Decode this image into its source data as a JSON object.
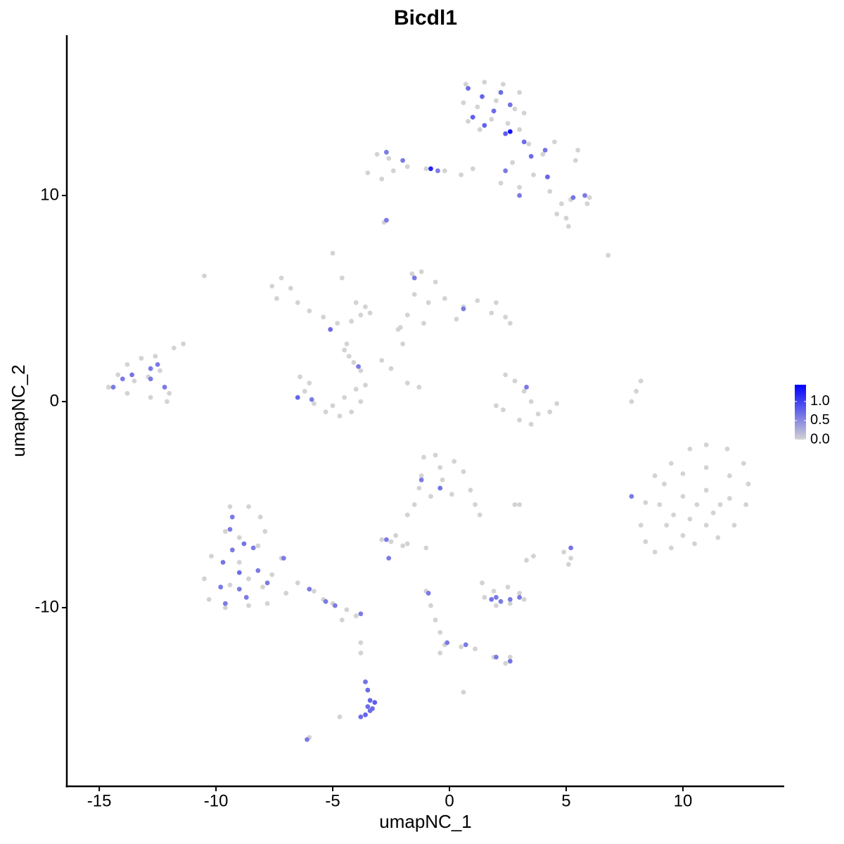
{
  "chart_data": {
    "type": "scatter",
    "title": "Bicdl1",
    "x_label": "umapNC_1",
    "y_label": "umapNC_2",
    "x": [
      0.7,
      1.5,
      2.3,
      3.0,
      0.6,
      1.2,
      2.0,
      2.8,
      3.2,
      0.8,
      1.8,
      2.5,
      3.0,
      1.3,
      0.8,
      1.4,
      2.2,
      1.0,
      1.9,
      2.6,
      1.5,
      2.4,
      2.6,
      3.4,
      4.0,
      4.5,
      5.4,
      5.5,
      3.6,
      4.3,
      4.8,
      5.2,
      5.9,
      6.0,
      4.6,
      5.0,
      5.1,
      3.0,
      2.2,
      2.7,
      3.2,
      4.1,
      3.5,
      4.2,
      5.3,
      5.8,
      3.0,
      2.4,
      -3.5,
      -3.1,
      -2.6,
      -2.4,
      -1.8,
      -1.0,
      -0.2,
      0.5,
      1.0,
      -2.9,
      -2.0,
      -0.8,
      -0.5,
      -2.7,
      -2.8,
      -2.7,
      6.8,
      -10.5,
      -7.6,
      -7.2,
      -6.8,
      -7.4,
      -6.5,
      -6.0,
      -5.4,
      -4.8,
      -4.2,
      -3.8,
      -5.0,
      -4.6,
      -4.0,
      -3.6,
      -5.1,
      -3.4,
      -4.4,
      -4.3,
      -2.9,
      -2.5,
      -1.8,
      -1.3,
      -2.2,
      -2.0,
      -1.6,
      -1.2,
      -0.6,
      -1.5,
      -0.9,
      -0.2,
      0.6,
      1.2,
      1.8,
      2.4,
      2.6,
      0.3,
      -1.8,
      -2.1,
      -1.1,
      2.0,
      -1.5,
      0.6,
      -6.4,
      -6.2,
      -5.8,
      -5.3,
      -4.7,
      -4.2,
      -3.8,
      -3.6,
      -3.8,
      -5.0,
      -4.5,
      -4.0,
      -6.0,
      -4.1,
      -4.5,
      -6.5,
      -5.9,
      -3.9,
      -14.6,
      -14.2,
      -13.8,
      -13.2,
      -12.6,
      -13.5,
      -12.9,
      -12.4,
      -12.0,
      -12.8,
      -13.8,
      -11.8,
      -11.4,
      -12.1,
      -14.4,
      -14.0,
      -13.6,
      -12.8,
      -12.2,
      -12.5,
      -12.8,
      2.4,
      2.8,
      3.2,
      3.5,
      3.8,
      4.3,
      4.6,
      3.0,
      2.3,
      2.0,
      3.5,
      3.3,
      7.8,
      8.0,
      8.2,
      8.4,
      8.8,
      9.5,
      10.3,
      11.0,
      11.9,
      12.6,
      12.8,
      12.7,
      12.2,
      11.5,
      10.5,
      9.5,
      8.4,
      8.2,
      9.2,
      10.0,
      11.0,
      12.0,
      9.0,
      10.0,
      11.0,
      12.0,
      9.3,
      10.3,
      11.3,
      10.0,
      11.0,
      9.6,
      10.6,
      11.6,
      8.8,
      7.8,
      -9.4,
      -8.6,
      -8.1,
      -9.6,
      -10.2,
      -10.5,
      -10.3,
      -9.6,
      -8.6,
      -7.8,
      -7.0,
      -7.6,
      -7.2,
      -8.2,
      -9.0,
      -8.6,
      -9.4,
      -8.0,
      -9.0,
      -7.9,
      -6.5,
      -5.8,
      -5.0,
      -4.4,
      -4.0,
      -4.6,
      -5.4,
      -9.3,
      -9.4,
      -8.8,
      -8.4,
      -9.7,
      -9.0,
      -8.2,
      -9.8,
      -9.0,
      -7.8,
      -9.6,
      -7.1,
      -6.0,
      -5.3,
      -4.9,
      -3.8,
      -9.3,
      -8.7,
      -1.1,
      -0.6,
      0.2,
      0.6,
      -1.2,
      -0.3,
      0.9,
      1.1,
      1.3,
      -0.8,
      0.1,
      -1.3,
      -0.4,
      -1.2,
      -0.4,
      2.8,
      3.0,
      -2.9,
      -2.5,
      -2.0,
      -2.3,
      -1.8,
      -1.8,
      -1.5,
      -2.7,
      -2.6,
      -1.0,
      3.3,
      3.6,
      4.9,
      5.2,
      5.1,
      5.2,
      1.5,
      1.9,
      2.5,
      3.0,
      3.2,
      2.6,
      2.0,
      1.4,
      1.8,
      2.2,
      2.6,
      3.0,
      2.0,
      -1.0,
      -0.8,
      -0.6,
      -0.4,
      -0.2,
      -0.4,
      0.5,
      1.1,
      1.9,
      2.4,
      2.6,
      -0.9,
      -0.1,
      0.7,
      2.0,
      2.6,
      -3.8,
      -3.8,
      0.6,
      -4.7,
      -6.0,
      -3.6,
      -3.5,
      -3.4,
      -3.3,
      -3.6,
      -3.8,
      -3.2,
      -3.4,
      -3.5,
      -6.1
    ],
    "values": [
      15.4,
      15.5,
      15.4,
      15.0,
      14.5,
      14.3,
      14.6,
      14.2,
      14.0,
      13.6,
      13.7,
      13.5,
      13.2,
      13.2,
      15.2,
      14.8,
      15.0,
      13.8,
      14.1,
      14.4,
      13.4,
      13.0,
      13.1,
      12.5,
      12.0,
      12.6,
      11.7,
      12.2,
      11.0,
      10.2,
      9.6,
      9.8,
      9.6,
      9.9,
      9.1,
      8.9,
      8.5,
      10.4,
      10.6,
      11.6,
      12.6,
      12.2,
      11.9,
      10.9,
      9.9,
      10.0,
      10.0,
      11.2,
      11.1,
      12.0,
      11.8,
      11.2,
      11.4,
      11.3,
      11.2,
      11.0,
      11.3,
      10.8,
      11.7,
      11.3,
      11.2,
      12.1,
      8.7,
      8.8,
      7.1,
      6.1,
      5.6,
      6.0,
      5.5,
      5.0,
      4.8,
      4.4,
      4.1,
      3.8,
      3.9,
      4.2,
      7.2,
      6.0,
      4.8,
      4.6,
      3.5,
      4.3,
      2.8,
      2.2,
      2.0,
      1.6,
      0.9,
      0.7,
      3.5,
      2.8,
      6.2,
      6.3,
      5.8,
      5.2,
      4.8,
      5.0,
      4.6,
      4.9,
      4.3,
      4.1,
      3.8,
      4.0,
      4.2,
      3.6,
      3.8,
      4.8,
      6.0,
      4.5,
      1.2,
      0.5,
      -0.1,
      -0.5,
      -0.7,
      -0.5,
      0,
      0.8,
      1.5,
      -0.2,
      0.2,
      0.6,
      0.9,
      1.9,
      2.5,
      0.2,
      0.1,
      1.7,
      0.7,
      1.3,
      1.8,
      2.1,
      2.2,
      1.0,
      1.2,
      1.5,
      0.4,
      0.2,
      0.4,
      2.6,
      2.8,
      0.0,
      0.7,
      1.1,
      1.3,
      1.6,
      0.7,
      1.8,
      1.1,
      1.3,
      1.0,
      0.5,
      0.0,
      -0.6,
      -0.5,
      -0.1,
      -0.9,
      -0.4,
      -0.2,
      -1.1,
      0.7,
      0.0,
      0.5,
      1.0,
      -4.9,
      -3.6,
      -3.0,
      -2.3,
      -2.1,
      -2.3,
      -3.0,
      -4.0,
      -5.0,
      -6.0,
      -6.6,
      -6.9,
      -7.1,
      -6.8,
      -6.0,
      -4.0,
      -3.5,
      -3.2,
      -3.6,
      -5.0,
      -4.6,
      -4.3,
      -4.7,
      -6.0,
      -5.7,
      -5.4,
      -6.5,
      -6.0,
      -5.5,
      -5.0,
      -5.0,
      -7.3,
      -4.6,
      -5.1,
      -5.1,
      -5.6,
      -6.3,
      -7.5,
      -8.6,
      -9.6,
      -10.0,
      -9.9,
      -9.8,
      -9.3,
      -8.4,
      -7.6,
      -7.0,
      -7.8,
      -8.6,
      -8.9,
      -9.0,
      -6.6,
      -6.3,
      -8.8,
      -9.2,
      -9.8,
      -10.1,
      -10.4,
      -10.6,
      -9.6,
      -5.6,
      -6.2,
      -6.9,
      -7.1,
      -7.8,
      -8.3,
      -8.2,
      -9.0,
      -9.1,
      -8.8,
      -9.8,
      -7.6,
      -9.1,
      -9.7,
      -9.9,
      -10.3,
      -7.2,
      -9.5,
      -2.7,
      -2.6,
      -2.9,
      -3.4,
      -3.6,
      -3.8,
      -4.3,
      -5.0,
      -5.5,
      -4.6,
      -4.5,
      -4.2,
      -3.2,
      -3.8,
      -4.2,
      -5.0,
      -5.0,
      -6.7,
      -6.8,
      -7.0,
      -6.5,
      -6.9,
      -5.5,
      -5.0,
      -6.7,
      -7.6,
      -7.1,
      -7.7,
      -7.5,
      -7.3,
      -7.6,
      -7.9,
      -7.1,
      -9.5,
      -9.2,
      -9.0,
      -9.3,
      -9.6,
      -9.8,
      -9.9,
      -8.8,
      -9.6,
      -9.7,
      -9.6,
      -9.5,
      -9.5,
      -9.2,
      -9.9,
      -10.6,
      -11.2,
      -11.8,
      -12.2,
      -11.9,
      -12.0,
      -12.4,
      -12.7,
      -12.4,
      -9.3,
      -11.7,
      -11.8,
      -12.4,
      -12.6,
      -11.7,
      -12.2,
      -14.1,
      -15.3,
      -16.3,
      -13.6,
      -14.0,
      -14.5,
      -14.9,
      -15.2,
      -15.3,
      -14.6,
      -15.0,
      -14.8,
      -16.4
    ],
    "color_values": [
      0,
      0,
      0,
      0,
      0,
      0,
      0,
      0,
      0,
      0,
      0,
      0,
      0,
      0,
      0.7,
      0.75,
      0.7,
      0.8,
      0.7,
      0.65,
      0.75,
      0.8,
      1.3,
      0,
      0,
      0,
      0,
      0,
      0,
      0,
      0,
      0,
      0,
      0,
      0,
      0,
      0,
      0,
      0,
      0,
      0.7,
      0.65,
      0.7,
      0.75,
      0.65,
      0.6,
      0.6,
      0.6,
      0,
      0,
      0,
      0,
      0,
      0,
      0,
      0,
      0,
      0,
      0.6,
      1.2,
      0.6,
      0.6,
      0,
      0.6,
      0,
      0,
      0,
      0,
      0,
      0,
      0,
      0,
      0,
      0,
      0,
      0,
      0,
      0,
      0,
      0,
      0.7,
      0,
      0,
      0,
      0,
      0,
      0,
      0,
      0,
      0,
      0,
      0,
      0,
      0,
      0,
      0,
      0,
      0,
      0,
      0,
      0,
      0,
      0,
      0,
      0,
      0,
      0.6,
      0.6,
      0,
      0,
      0,
      0,
      0,
      0,
      0,
      0,
      0,
      0,
      0,
      0,
      0,
      0,
      0,
      0.75,
      0.6,
      0.6,
      0,
      0,
      0,
      0,
      0,
      0,
      0,
      0,
      0,
      0,
      0,
      0,
      0,
      0,
      0.6,
      0.6,
      0.65,
      0.6,
      0.6,
      0.6,
      0.6,
      0,
      0,
      0,
      0,
      0,
      0,
      0,
      0,
      0,
      0,
      0,
      0.6,
      0,
      0,
      0,
      0,
      0,
      0,
      0,
      0,
      0,
      0,
      0,
      0,
      0,
      0,
      0,
      0,
      0,
      0,
      0,
      0,
      0,
      0,
      0,
      0,
      0,
      0,
      0,
      0,
      0,
      0,
      0,
      0,
      0,
      0,
      0,
      0.6,
      0,
      0,
      0,
      0,
      0,
      0,
      0,
      0,
      0,
      0,
      0,
      0,
      0,
      0,
      0,
      0,
      0,
      0,
      0,
      0,
      0,
      0,
      0,
      0,
      0,
      0,
      0,
      0.6,
      0.6,
      0.65,
      0.6,
      0.65,
      0.7,
      0.6,
      0.6,
      0.6,
      0.6,
      0.6,
      0.6,
      0.6,
      0.6,
      0.6,
      0.6,
      0.6,
      0.6,
      0,
      0,
      0,
      0,
      0,
      0,
      0,
      0,
      0,
      0,
      0,
      0,
      0,
      0.6,
      0.65,
      0,
      0,
      0,
      0,
      0,
      0,
      0,
      0,
      0,
      0.6,
      0.6,
      0,
      0,
      0,
      0,
      0,
      0,
      0.65,
      0,
      0,
      0,
      0,
      0,
      0,
      0,
      0,
      0.65,
      0.6,
      0.6,
      0.6,
      0.6,
      0,
      0,
      0,
      0,
      0,
      0,
      0,
      0,
      0,
      0,
      0,
      0.6,
      0.6,
      0.6,
      0.6,
      0.65,
      0,
      0,
      0,
      0,
      0,
      0.65,
      0.7,
      0.75,
      0.7,
      0.75,
      0.7,
      0.8,
      0.7,
      0.7,
      0.6
    ],
    "xlim": [
      -16.39,
      14.34
    ],
    "ylim": [
      -18.67,
      17.78
    ],
    "xticks": [
      -15,
      -10,
      -5,
      0,
      5,
      10
    ],
    "yticks": [
      -10,
      0,
      10
    ],
    "grid": false,
    "color_scale": {
      "low": "#d3d3d3",
      "high": "#0000ff",
      "lim": [
        0,
        1.44
      ],
      "ticks": [
        {
          "value": 0,
          "label": "0.0"
        },
        {
          "value": 0.5,
          "label": "0.5"
        },
        {
          "value": 1,
          "label": "1.0"
        }
      ]
    }
  }
}
